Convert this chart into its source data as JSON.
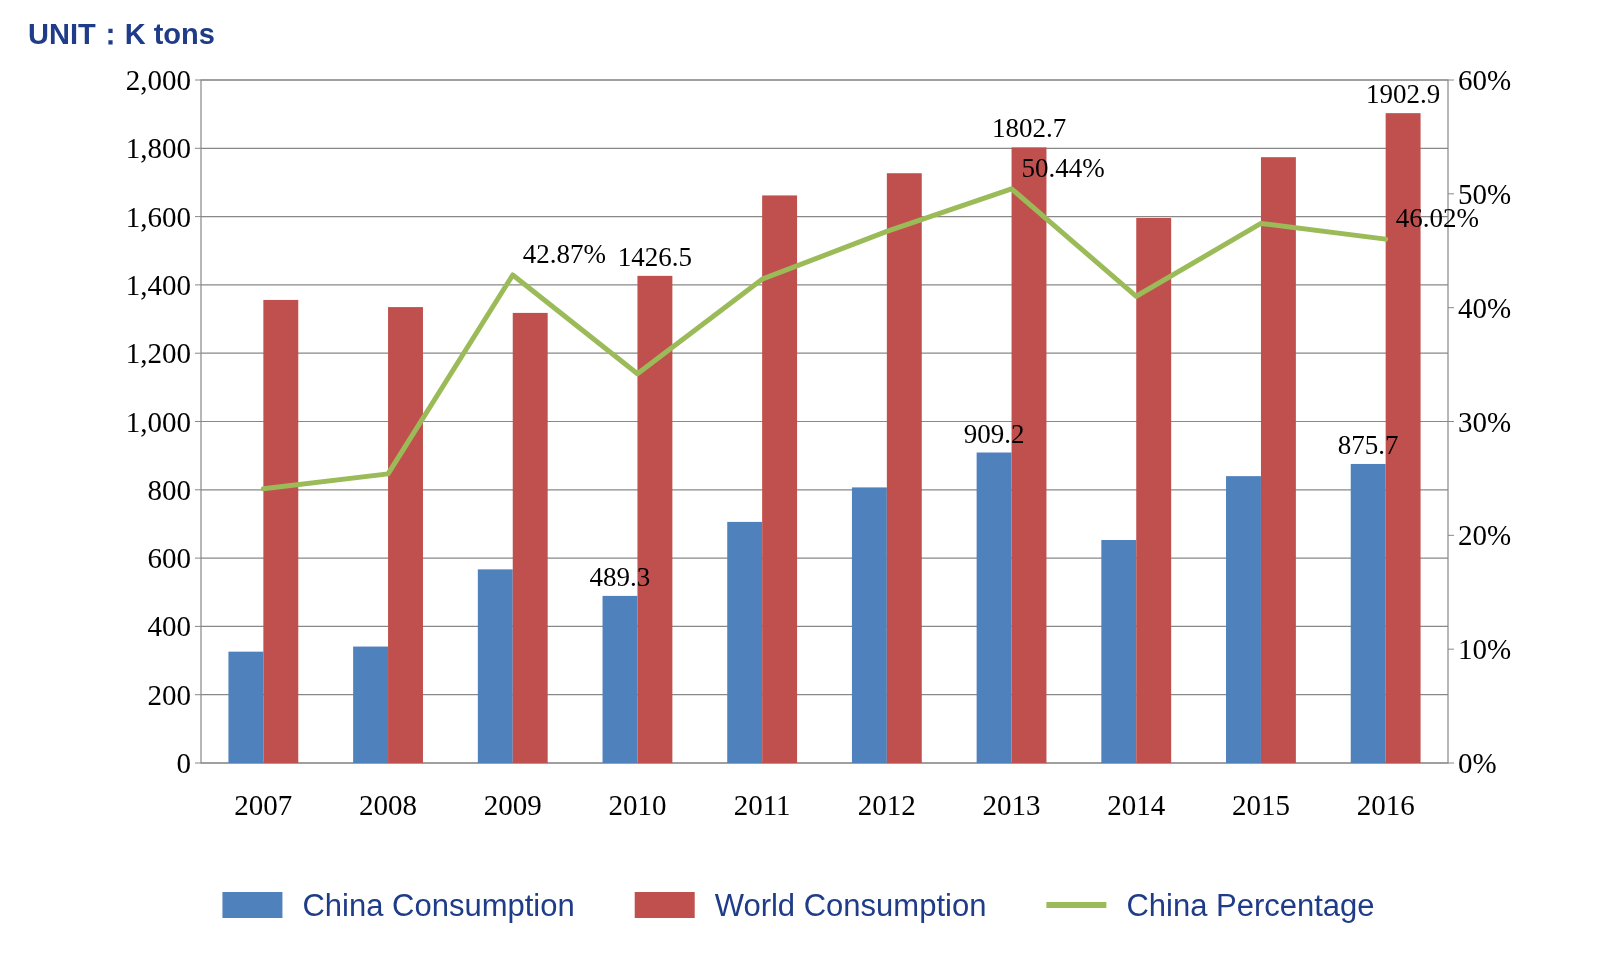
{
  "chart_data": {
    "type": "bar",
    "title": "UNIT：K tons",
    "categories": [
      "2007",
      "2008",
      "2009",
      "2010",
      "2011",
      "2012",
      "2013",
      "2014",
      "2015",
      "2016"
    ],
    "series": [
      {
        "name": "China Consumption",
        "color": "#4f81bd",
        "values": [
          326,
          341,
          567,
          489.3,
          706,
          807,
          909.2,
          653,
          840,
          875.7
        ],
        "value_labels": [
          null,
          null,
          null,
          "489.3",
          null,
          null,
          "909.2",
          null,
          null,
          "875.7"
        ]
      },
      {
        "name": "World Consumption",
        "color": "#c0504d",
        "values": [
          1356,
          1335,
          1318,
          1426.5,
          1662,
          1727,
          1802.7,
          1596,
          1774,
          1902.9
        ],
        "value_labels": [
          null,
          null,
          null,
          "1426.5",
          null,
          null,
          "1802.7",
          null,
          null,
          "1902.9"
        ]
      },
      {
        "name": "China Percentage",
        "type": "line",
        "axis": "y2",
        "color": "#9bbb59",
        "values": [
          24.1,
          25.4,
          42.87,
          34.2,
          42.5,
          46.7,
          50.44,
          41.0,
          47.4,
          46.02
        ],
        "value_labels": [
          null,
          null,
          "42.87%",
          null,
          null,
          null,
          "50.44%",
          null,
          null,
          "46.02%"
        ]
      }
    ],
    "ylim": [
      0,
      2000
    ],
    "yticks": [
      {
        "value": 0,
        "label": "0"
      },
      {
        "value": 200,
        "label": "200"
      },
      {
        "value": 400,
        "label": "400"
      },
      {
        "value": 600,
        "label": "600"
      },
      {
        "value": 800,
        "label": "800"
      },
      {
        "value": 1000,
        "label": "1,000"
      },
      {
        "value": 1200,
        "label": "1,200"
      },
      {
        "value": 1400,
        "label": "1,400"
      },
      {
        "value": 1600,
        "label": "1,600"
      },
      {
        "value": 1800,
        "label": "1,800"
      },
      {
        "value": 2000,
        "label": "2,000"
      }
    ],
    "y2lim": [
      0,
      60
    ],
    "y2ticks": [
      {
        "value": 0,
        "label": "0%"
      },
      {
        "value": 10,
        "label": "10%"
      },
      {
        "value": 20,
        "label": "20%"
      },
      {
        "value": 30,
        "label": "30%"
      },
      {
        "value": 40,
        "label": "40%"
      },
      {
        "value": 50,
        "label": "50%"
      },
      {
        "value": 60,
        "label": "60%"
      }
    ],
    "grid": "y",
    "legend": "bottom"
  }
}
